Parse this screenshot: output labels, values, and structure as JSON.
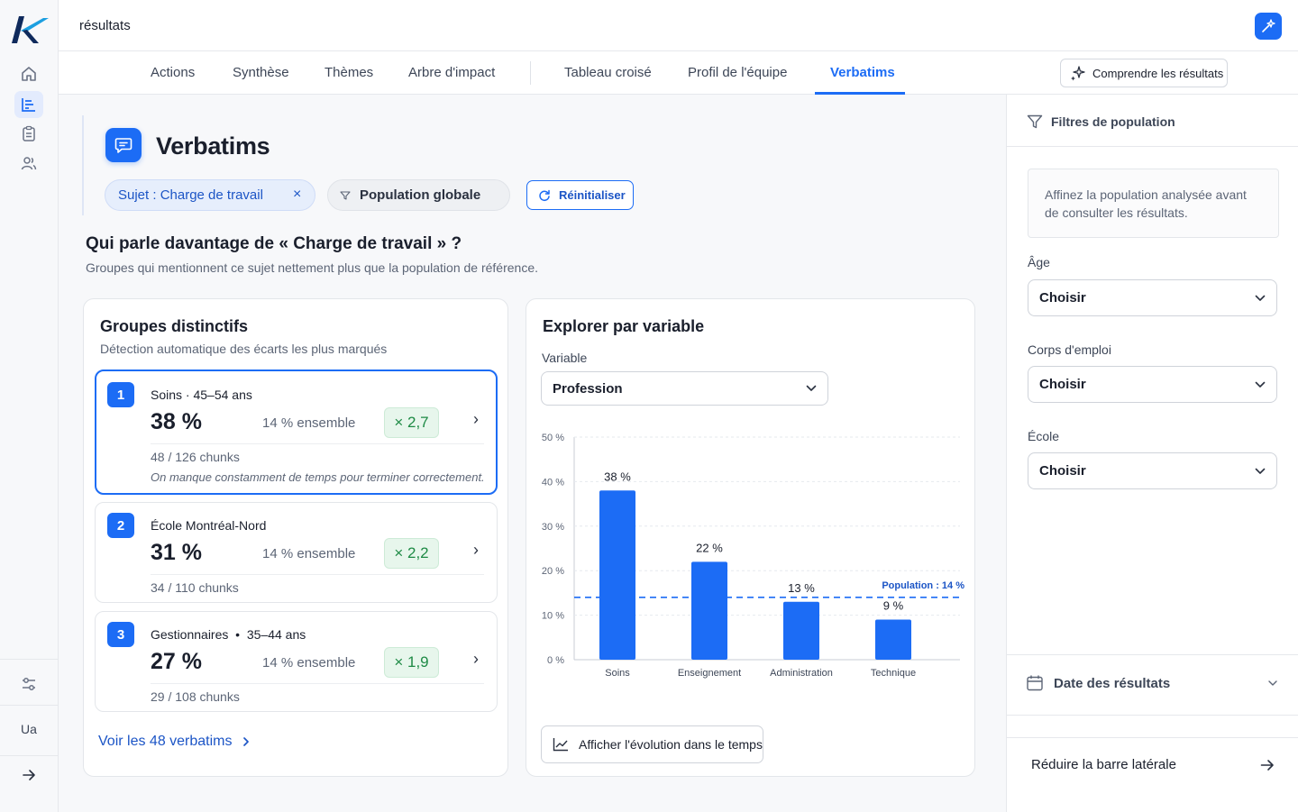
{
  "app": {
    "logo": "K",
    "page_title": "résultats",
    "user_initials": "Ua"
  },
  "tabs": [
    {
      "label": "Actions"
    },
    {
      "label": "Synthèse"
    },
    {
      "label": "Thèmes"
    },
    {
      "label": "Arbre d'impact"
    },
    {
      "label": "Tableau croisé"
    },
    {
      "label": "Profil de l'équipe"
    },
    {
      "label": "Verbatims"
    }
  ],
  "active_tab": "Verbatims",
  "comprendre_label": "Comprendre les résultats",
  "header": {
    "title": "Verbatims"
  },
  "chips": {
    "subject": "Sujet : Charge de travail",
    "population": "Population globale",
    "reset": "Réinitialiser"
  },
  "question": {
    "title": "Qui parle davantage de « Charge de travail » ?",
    "subtitle": "Groupes qui mentionnent ce sujet nettement plus que la population de référence."
  },
  "groups_card": {
    "title": "Groupes distinctifs",
    "subtitle": "Détection automatique des écarts les plus marqués",
    "groups": [
      {
        "rank": "1",
        "name": "Soins · 45–54 ans",
        "pct": "38 %",
        "ensemble": "14 % ensemble",
        "ratio": "× 2,7",
        "chunks": "48 / 126 chunks",
        "quote": "On manque constamment de temps pour terminer correctement."
      },
      {
        "rank": "2",
        "name": "École Montréal-Nord",
        "pct": "31 %",
        "ensemble": "14 % ensemble",
        "ratio": "× 2,2",
        "chunks": "34 / 110 chunks"
      },
      {
        "rank": "3",
        "name": "Gestionnaires  •  35–44 ans",
        "pct": "27 %",
        "ensemble": "14 % ensemble",
        "ratio": "× 1,9",
        "chunks": "29 / 108 chunks"
      }
    ],
    "see_all": "Voir les 48 verbatims"
  },
  "explore_card": {
    "title": "Explorer par variable",
    "variable_label": "Variable",
    "variable_value": "Profession",
    "evolution_button": "Afficher l'évolution dans le temps"
  },
  "chart_data": {
    "type": "bar",
    "categories": [
      "Soins",
      "Enseignement",
      "Administration",
      "Technique"
    ],
    "values": [
      38,
      22,
      13,
      9
    ],
    "value_labels": [
      "38 %",
      "22 %",
      "13 %",
      "9 %"
    ],
    "ylim": [
      0,
      50
    ],
    "yticks": [
      0,
      10,
      20,
      30,
      40,
      50
    ],
    "ytick_labels": [
      "0 %",
      "10 %",
      "20 %",
      "30 %",
      "40 %",
      "50 %"
    ],
    "reference_line": {
      "value": 14,
      "label": "Population : 14 %"
    },
    "bar_color": "#1c6cf5",
    "grid": true
  },
  "sidebar": {
    "filters_title": "Filtres de population",
    "hint": "Affinez la population analysée avant de consulter les résultats.",
    "filters": [
      {
        "label": "Âge",
        "value": "Choisir"
      },
      {
        "label": "Corps d'emploi",
        "value": "Choisir"
      },
      {
        "label": "École",
        "value": "Choisir"
      }
    ],
    "date_title": "Date des résultats",
    "reduce_label": "Réduire la barre latérale"
  },
  "colors": {
    "accent": "#1c6cf5",
    "ratio_green": "#1e8a45"
  }
}
